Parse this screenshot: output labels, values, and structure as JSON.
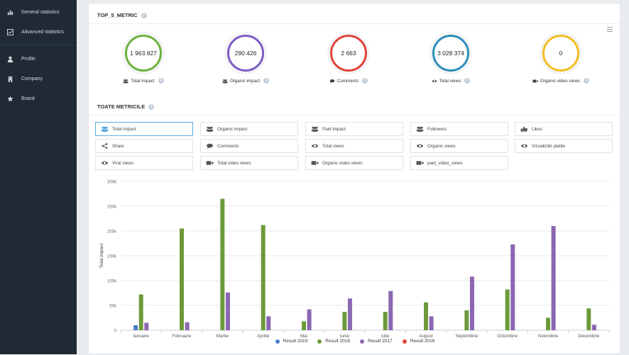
{
  "sidebar": {
    "items": [
      {
        "label": "General statistics",
        "icon": "bar-chart-icon"
      },
      {
        "label": "Advanced statistics",
        "icon": "line-chart-icon"
      },
      {
        "label": "Profile",
        "icon": "user-icon"
      },
      {
        "label": "Company",
        "icon": "building-icon"
      },
      {
        "label": "Brand",
        "icon": "star-icon"
      }
    ]
  },
  "top5": {
    "title": "TOP_5_METRIC",
    "metrics": [
      {
        "value": "1 963 827",
        "label": "Total impact",
        "color": "#6cb33e",
        "icon": "users-icon"
      },
      {
        "value": "290 426",
        "label": "Organic impact",
        "color": "#7d5cc4",
        "icon": "users-icon"
      },
      {
        "value": "2 663",
        "label": "Comments",
        "color": "#e0443a",
        "icon": "comment-icon"
      },
      {
        "value": "3 028 374",
        "label": "Total views",
        "color": "#2e8db8",
        "icon": "eye-icon"
      },
      {
        "value": "0",
        "label": "Organic video views",
        "color": "#f2bc22",
        "icon": "video-icon"
      }
    ]
  },
  "all_metrics": {
    "title": "TOATE METRICILE",
    "buttons": [
      {
        "label": "Total impact",
        "icon": "users-icon"
      },
      {
        "label": "Organic impact",
        "icon": "users-icon"
      },
      {
        "label": "Paid impact",
        "icon": "users-icon"
      },
      {
        "label": "Followers",
        "icon": "users-icon"
      },
      {
        "label": "Likes",
        "icon": "thumbs-up-icon"
      },
      {
        "label": "Share",
        "icon": "share-icon"
      },
      {
        "label": "Comments",
        "icon": "comment-icon"
      },
      {
        "label": "Total views",
        "icon": "eye-icon"
      },
      {
        "label": "Organic views",
        "icon": "eye-icon"
      },
      {
        "label": "Vizualizări platite",
        "icon": "eye-icon"
      },
      {
        "label": "Viral views",
        "icon": "eye-icon"
      },
      {
        "label": "Total video views",
        "icon": "video-icon"
      },
      {
        "label": "Organic video views",
        "icon": "video-icon"
      },
      {
        "label": "paid_video_views",
        "icon": "video-icon"
      }
    ],
    "active": "Total impact"
  },
  "chart_data": {
    "type": "bar",
    "title": "",
    "xlabel": "",
    "ylabel": "Total impact",
    "ylim": [
      0,
      300000
    ],
    "yticks": [
      0,
      50000,
      100000,
      150000,
      200000,
      250000,
      300000
    ],
    "ytick_labels": [
      "0",
      "50k",
      "100k",
      "150k",
      "200k",
      "250k",
      "300k"
    ],
    "categories": [
      "Ianuarie",
      "Februarie",
      "Martie",
      "Aprilie",
      "Mai",
      "Iunie",
      "Iulie",
      "August",
      "Septembrie",
      "Octombrie",
      "Noiembrie",
      "Decembrie"
    ],
    "series": [
      {
        "name": "Result 2019",
        "color": "#4a7cc0",
        "values": [
          10000,
          0,
          0,
          0,
          0,
          0,
          0,
          0,
          0,
          0,
          0,
          0
        ]
      },
      {
        "name": "Result 2018",
        "color": "#6c9a3a",
        "values": [
          72000,
          205000,
          265000,
          212000,
          18000,
          37000,
          37000,
          56000,
          40000,
          82000,
          25000,
          44000
        ]
      },
      {
        "name": "Result 2017",
        "color": "#8b67b2",
        "values": [
          15000,
          16000,
          76000,
          28000,
          42000,
          64000,
          79000,
          28000,
          108000,
          173000,
          210000,
          11000
        ]
      },
      {
        "name": "Result 2016",
        "color": "#d9453b",
        "values": [
          0,
          0,
          0,
          0,
          0,
          0,
          0,
          0,
          0,
          0,
          0,
          0
        ]
      }
    ],
    "legend": "bottom-center"
  }
}
